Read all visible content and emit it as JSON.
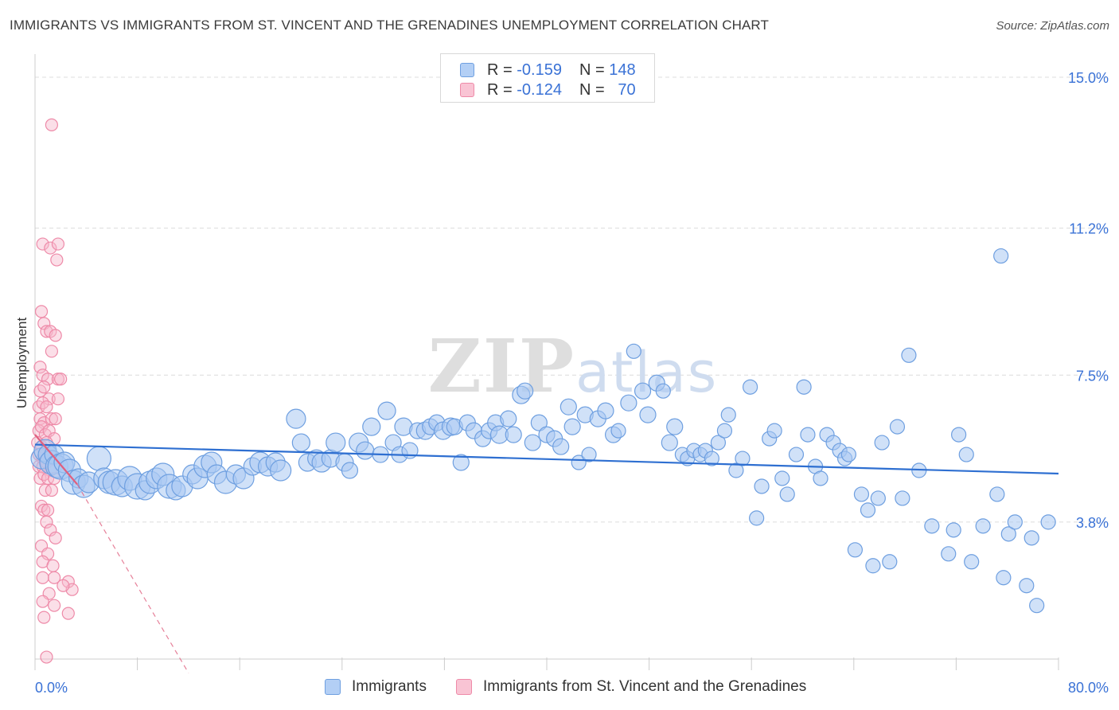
{
  "header": {
    "title": "IMMIGRANTS VS IMMIGRANTS FROM ST. VINCENT AND THE GRENADINES UNEMPLOYMENT CORRELATION CHART",
    "source": "Source: ZipAtlas.com"
  },
  "legend_top": {
    "r_label": "R =",
    "n_label": "N =",
    "rows": [
      {
        "r": "-0.159",
        "n": "148"
      },
      {
        "r": "-0.124",
        "n": "70"
      }
    ]
  },
  "colors": {
    "blue_fill": "#a9c8f2",
    "blue_stroke": "#6e9fe0",
    "blue_line": "#2e6fd1",
    "pink_fill": "#f7b8cc",
    "pink_stroke": "#ee8aa8",
    "pink_line": "#e0607f",
    "grid": "#dcdcdc",
    "axis_label": "#3a72d6"
  },
  "chart_data": {
    "type": "scatter",
    "title": "IMMIGRANTS VS IMMIGRANTS FROM ST. VINCENT AND THE GRENADINES UNEMPLOYMENT CORRELATION CHART",
    "xlabel": "",
    "ylabel": "Unemployment",
    "xlim": [
      0,
      80
    ],
    "ylim": [
      0,
      15.5
    ],
    "x_tick_labels": [
      "0.0%",
      "80.0%"
    ],
    "y_ticks": [
      3.8,
      7.5,
      11.2,
      15.0
    ],
    "y_tick_labels": [
      "3.8%",
      "7.5%",
      "11.2%",
      "15.0%"
    ],
    "grid": "horizontal dashed",
    "legend": "top-center and bottom",
    "watermark": "ZIPatlas",
    "series": [
      {
        "name": "Immigrants",
        "color": "#6e9fe0",
        "r": -0.159,
        "n": 148,
        "trend": {
          "x": [
            0,
            80
          ],
          "y": [
            5.75,
            5.02
          ]
        },
        "points": [
          [
            0.5,
            5.4,
            13
          ],
          [
            0.8,
            5.6,
            14
          ],
          [
            1.0,
            5.5,
            12
          ],
          [
            1.3,
            5.3,
            15
          ],
          [
            1.5,
            5.5,
            12
          ],
          [
            1.7,
            5.2,
            14
          ],
          [
            2.0,
            5.2,
            16
          ],
          [
            2.3,
            5.3,
            13
          ],
          [
            2.7,
            5.1,
            14
          ],
          [
            3.0,
            4.8,
            15
          ],
          [
            3.4,
            4.9,
            12
          ],
          [
            3.8,
            4.7,
            14
          ],
          [
            4.2,
            4.8,
            13
          ],
          [
            5.0,
            5.4,
            15
          ],
          [
            5.4,
            4.9,
            13
          ],
          [
            5.8,
            4.8,
            14
          ],
          [
            6.3,
            4.8,
            16
          ],
          [
            6.8,
            4.7,
            13
          ],
          [
            7.4,
            4.9,
            15
          ],
          [
            8.0,
            4.7,
            16
          ],
          [
            8.6,
            4.6,
            12
          ],
          [
            9.0,
            4.8,
            14
          ],
          [
            9.5,
            4.9,
            13
          ],
          [
            10.0,
            5.0,
            14
          ],
          [
            10.5,
            4.7,
            15
          ],
          [
            11.0,
            4.6,
            12
          ],
          [
            11.5,
            4.7,
            13
          ],
          [
            12.3,
            5.0,
            12
          ],
          [
            12.7,
            4.9,
            13
          ],
          [
            13.3,
            5.2,
            14
          ],
          [
            13.8,
            5.3,
            13
          ],
          [
            14.2,
            5.0,
            12
          ],
          [
            14.9,
            4.8,
            14
          ],
          [
            15.7,
            5.0,
            12
          ],
          [
            16.3,
            4.9,
            13
          ],
          [
            17.0,
            5.2,
            11
          ],
          [
            17.6,
            5.3,
            13
          ],
          [
            18.2,
            5.2,
            12
          ],
          [
            18.8,
            5.3,
            12
          ],
          [
            19.2,
            5.1,
            13
          ],
          [
            20.4,
            6.4,
            12
          ],
          [
            20.8,
            5.8,
            11
          ],
          [
            21.3,
            5.3,
            11
          ],
          [
            22.0,
            5.4,
            11
          ],
          [
            22.4,
            5.3,
            12
          ],
          [
            23.1,
            5.4,
            11
          ],
          [
            23.5,
            5.8,
            12
          ],
          [
            24.2,
            5.3,
            11
          ],
          [
            24.6,
            5.1,
            10
          ],
          [
            25.3,
            5.8,
            12
          ],
          [
            25.8,
            5.6,
            11
          ],
          [
            26.3,
            6.2,
            11
          ],
          [
            27.0,
            5.5,
            10
          ],
          [
            27.5,
            6.6,
            11
          ],
          [
            28.0,
            5.8,
            10
          ],
          [
            28.5,
            5.5,
            10
          ],
          [
            28.8,
            6.2,
            11
          ],
          [
            29.3,
            5.6,
            10
          ],
          [
            29.9,
            6.1,
            10
          ],
          [
            30.5,
            6.1,
            11
          ],
          [
            30.9,
            6.2,
            10
          ],
          [
            31.4,
            6.3,
            10
          ],
          [
            31.9,
            6.1,
            11
          ],
          [
            32.5,
            6.2,
            11
          ],
          [
            32.8,
            6.2,
            10
          ],
          [
            33.3,
            5.3,
            10
          ],
          [
            33.8,
            6.3,
            10
          ],
          [
            34.3,
            6.1,
            10
          ],
          [
            35.0,
            5.9,
            10
          ],
          [
            35.5,
            6.1,
            10
          ],
          [
            36.0,
            6.3,
            10
          ],
          [
            36.3,
            6.0,
            11
          ],
          [
            37.0,
            6.4,
            10
          ],
          [
            37.4,
            6.0,
            10
          ],
          [
            38.0,
            7.0,
            11
          ],
          [
            38.3,
            7.1,
            10
          ],
          [
            38.9,
            5.8,
            10
          ],
          [
            39.4,
            6.3,
            10
          ],
          [
            40.0,
            6.0,
            10
          ],
          [
            40.6,
            5.9,
            10
          ],
          [
            41.1,
            5.7,
            10
          ],
          [
            41.7,
            6.7,
            10
          ],
          [
            42.0,
            6.2,
            10
          ],
          [
            42.5,
            5.3,
            9
          ],
          [
            43.0,
            6.5,
            10
          ],
          [
            43.3,
            5.5,
            9
          ],
          [
            44.0,
            6.4,
            10
          ],
          [
            44.6,
            6.6,
            10
          ],
          [
            45.2,
            6.0,
            10
          ],
          [
            45.6,
            6.1,
            9
          ],
          [
            46.4,
            6.8,
            10
          ],
          [
            46.8,
            8.1,
            9
          ],
          [
            47.5,
            7.1,
            10
          ],
          [
            47.9,
            6.5,
            10
          ],
          [
            48.6,
            7.3,
            10
          ],
          [
            49.1,
            7.1,
            9
          ],
          [
            49.6,
            5.8,
            10
          ],
          [
            50.0,
            6.2,
            10
          ],
          [
            50.6,
            5.5,
            9
          ],
          [
            51.0,
            5.4,
            9
          ],
          [
            51.5,
            5.6,
            9
          ],
          [
            52.0,
            5.5,
            9
          ],
          [
            52.4,
            5.6,
            9
          ],
          [
            52.9,
            5.4,
            9
          ],
          [
            53.4,
            5.8,
            9
          ],
          [
            53.9,
            6.1,
            9
          ],
          [
            54.2,
            6.5,
            9
          ],
          [
            54.8,
            5.1,
            9
          ],
          [
            55.3,
            5.4,
            9
          ],
          [
            55.9,
            7.2,
            9
          ],
          [
            56.4,
            3.9,
            9
          ],
          [
            56.8,
            4.7,
            9
          ],
          [
            57.4,
            5.9,
            9
          ],
          [
            57.8,
            6.1,
            9
          ],
          [
            58.4,
            4.9,
            9
          ],
          [
            58.8,
            4.5,
            9
          ],
          [
            59.5,
            5.5,
            9
          ],
          [
            60.1,
            7.2,
            9
          ],
          [
            60.4,
            6.0,
            9
          ],
          [
            61.0,
            5.2,
            9
          ],
          [
            61.4,
            4.9,
            9
          ],
          [
            61.9,
            6.0,
            9
          ],
          [
            62.4,
            5.8,
            9
          ],
          [
            62.9,
            5.6,
            9
          ],
          [
            63.3,
            5.4,
            9
          ],
          [
            63.6,
            5.5,
            9
          ],
          [
            64.1,
            3.1,
            9
          ],
          [
            64.6,
            4.5,
            9
          ],
          [
            65.1,
            4.1,
            9
          ],
          [
            65.5,
            2.7,
            9
          ],
          [
            65.9,
            4.4,
            9
          ],
          [
            66.2,
            5.8,
            9
          ],
          [
            66.8,
            2.8,
            9
          ],
          [
            67.4,
            6.2,
            9
          ],
          [
            67.8,
            4.4,
            9
          ],
          [
            68.3,
            8.0,
            9
          ],
          [
            69.1,
            5.1,
            9
          ],
          [
            70.1,
            3.7,
            9
          ],
          [
            71.4,
            3.0,
            9
          ],
          [
            71.8,
            3.6,
            9
          ],
          [
            72.2,
            6.0,
            9
          ],
          [
            72.8,
            5.5,
            9
          ],
          [
            73.2,
            2.8,
            9
          ],
          [
            74.1,
            3.7,
            9
          ],
          [
            75.2,
            4.5,
            9
          ],
          [
            75.7,
            2.4,
            9
          ],
          [
            76.1,
            3.5,
            9
          ],
          [
            76.6,
            3.8,
            9
          ],
          [
            77.5,
            2.2,
            9
          ],
          [
            77.9,
            3.4,
            9
          ],
          [
            78.3,
            1.7,
            9
          ],
          [
            79.2,
            3.8,
            9
          ],
          [
            75.5,
            10.5,
            9
          ]
        ]
      },
      {
        "name": "Immigrants from St. Vincent and the Grenadines",
        "color": "#ee8aa8",
        "r": -0.124,
        "n": 70,
        "trend": {
          "x": [
            0,
            3.3
          ],
          "y": [
            6.0,
            4.75
          ]
        },
        "trend_dashed_ext": {
          "x": [
            3.3,
            12
          ],
          "y": [
            4.75,
            0.0
          ]
        },
        "points": [
          [
            1.3,
            13.8
          ],
          [
            0.6,
            10.8
          ],
          [
            1.2,
            10.7
          ],
          [
            1.8,
            10.8
          ],
          [
            1.7,
            10.4
          ],
          [
            0.5,
            9.1
          ],
          [
            0.7,
            8.8
          ],
          [
            0.9,
            8.6
          ],
          [
            1.2,
            8.6
          ],
          [
            1.6,
            8.5
          ],
          [
            1.3,
            8.1
          ],
          [
            0.4,
            7.7
          ],
          [
            0.6,
            7.5
          ],
          [
            1.0,
            7.4
          ],
          [
            1.8,
            7.4
          ],
          [
            2.0,
            7.4
          ],
          [
            0.4,
            7.1
          ],
          [
            0.7,
            7.2
          ],
          [
            1.1,
            6.9
          ],
          [
            1.8,
            6.9
          ],
          [
            0.3,
            6.7
          ],
          [
            0.6,
            6.8
          ],
          [
            0.9,
            6.7
          ],
          [
            0.4,
            6.4
          ],
          [
            0.7,
            6.3
          ],
          [
            1.3,
            6.4
          ],
          [
            1.6,
            6.4
          ],
          [
            0.3,
            6.1
          ],
          [
            0.5,
            6.2
          ],
          [
            0.8,
            6.0
          ],
          [
            1.1,
            6.1
          ],
          [
            1.5,
            5.9
          ],
          [
            0.2,
            5.8
          ],
          [
            0.5,
            5.7
          ],
          [
            0.9,
            5.8
          ],
          [
            0.3,
            5.5
          ],
          [
            0.6,
            5.4
          ],
          [
            0.8,
            5.5
          ],
          [
            1.2,
            5.6
          ],
          [
            0.3,
            5.2
          ],
          [
            0.6,
            5.2
          ],
          [
            0.9,
            5.3
          ],
          [
            1.2,
            5.1
          ],
          [
            0.4,
            4.9
          ],
          [
            0.7,
            5.0
          ],
          [
            1.0,
            4.9
          ],
          [
            1.5,
            4.9
          ],
          [
            0.8,
            4.6
          ],
          [
            1.3,
            4.6
          ],
          [
            0.5,
            4.2
          ],
          [
            0.7,
            4.1
          ],
          [
            1.0,
            4.1
          ],
          [
            0.9,
            3.8
          ],
          [
            1.2,
            3.6
          ],
          [
            1.6,
            3.4
          ],
          [
            0.5,
            3.2
          ],
          [
            1.0,
            3.0
          ],
          [
            0.6,
            2.8
          ],
          [
            1.4,
            2.7
          ],
          [
            0.6,
            2.4
          ],
          [
            1.5,
            2.4
          ],
          [
            2.6,
            2.3
          ],
          [
            2.9,
            2.1
          ],
          [
            1.1,
            2.0
          ],
          [
            0.6,
            1.8
          ],
          [
            1.5,
            1.7
          ],
          [
            2.6,
            1.5
          ],
          [
            0.7,
            1.4
          ],
          [
            0.9,
            0.4
          ],
          [
            2.2,
            2.2
          ]
        ]
      }
    ]
  },
  "legend_bottom": {
    "items": [
      {
        "label": "Immigrants"
      },
      {
        "label": "Immigrants from St. Vincent and the Grenadines"
      }
    ]
  }
}
